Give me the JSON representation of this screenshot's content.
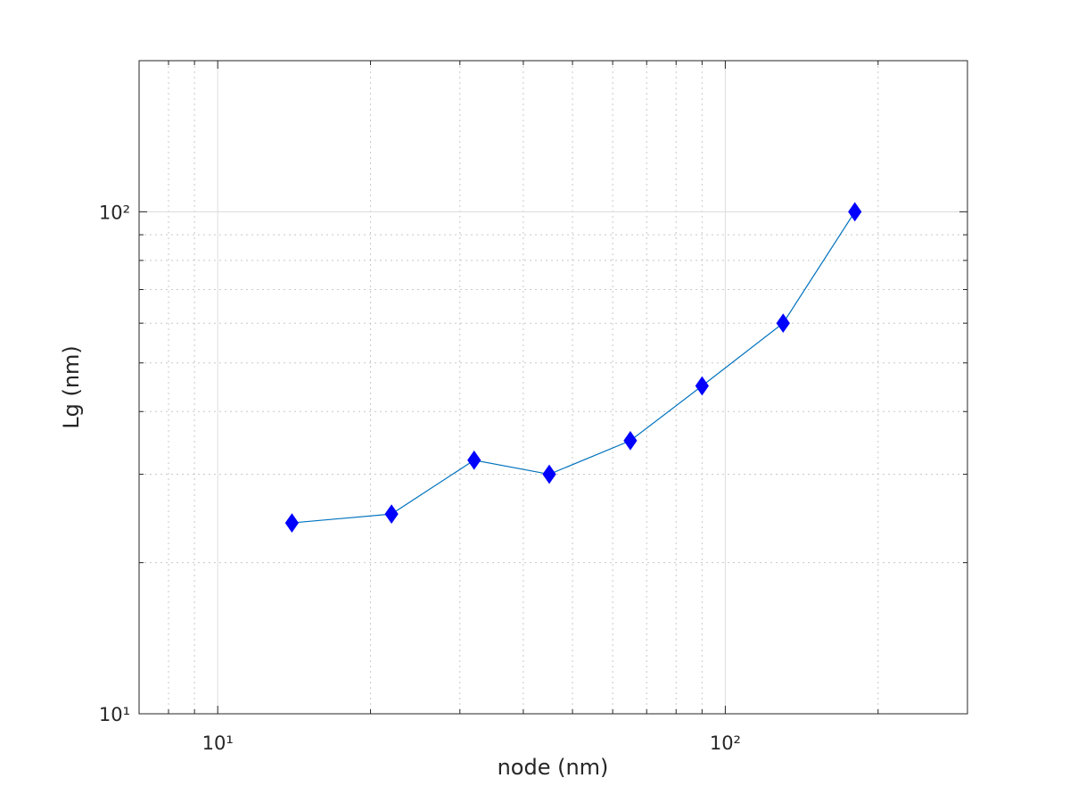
{
  "chart_data": {
    "type": "line",
    "xlabel": "node (nm)",
    "ylabel": "Lg (nm)",
    "xscale": "log",
    "yscale": "log",
    "grid": true,
    "x": [
      14,
      22,
      32,
      45,
      65,
      90,
      130,
      180
    ],
    "series": [
      {
        "color": "#0072bd",
        "marker": "diamond",
        "marker_color": "#0000ff",
        "values": [
          24,
          25,
          32,
          30,
          35,
          45,
          60,
          100
        ]
      }
    ],
    "xlim": [
      7,
      300
    ],
    "ylim": [
      10,
      200
    ],
    "xticks": [
      {
        "value": 10,
        "label": "10¹"
      },
      {
        "value": 100,
        "label": "10²"
      }
    ],
    "yticks": [
      {
        "value": 10,
        "label": "10¹"
      },
      {
        "value": 100,
        "label": "10²"
      }
    ],
    "xminorticks": [
      8,
      9,
      20,
      30,
      40,
      50,
      60,
      70,
      80,
      90,
      200
    ],
    "yminorticks": [
      20,
      30,
      40,
      50,
      60,
      70,
      80,
      90
    ]
  }
}
